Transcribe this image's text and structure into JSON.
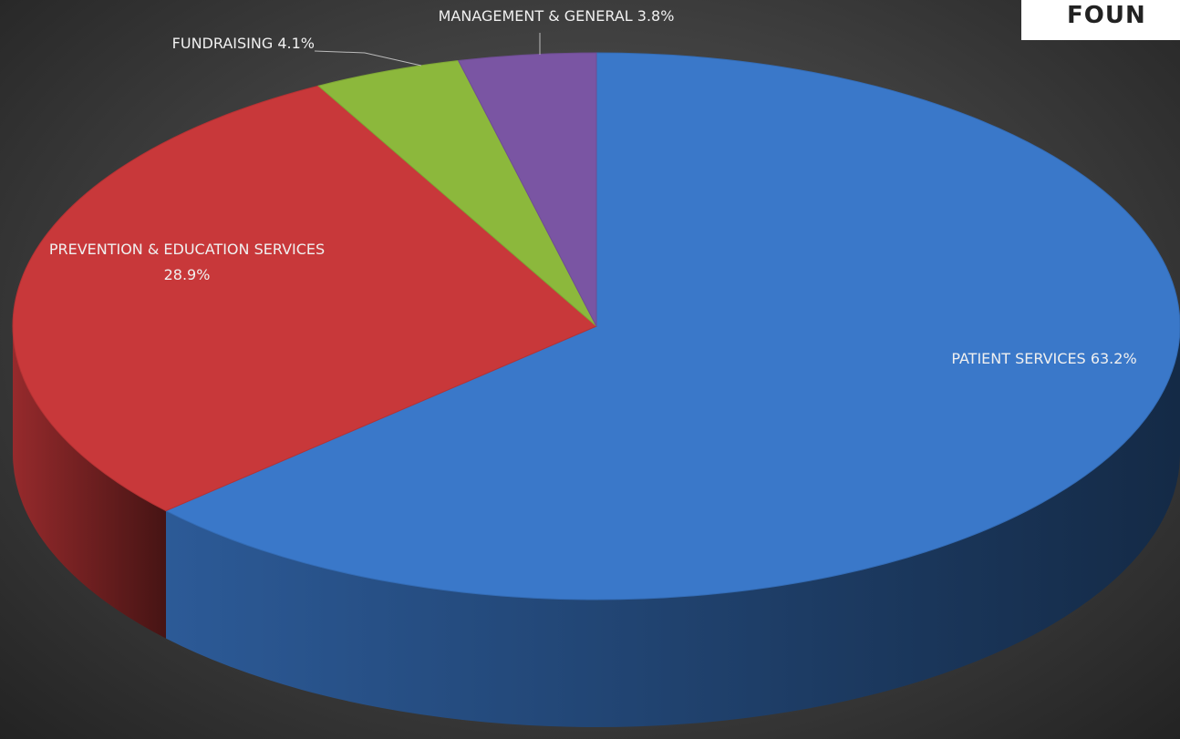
{
  "logo": "FOUN",
  "chart_data": {
    "type": "pie",
    "categories": [
      "PATIENT SERVICES",
      "PREVENTION & EDUCATION SERVICES",
      "FUNDRAISING",
      "MANAGEMENT & GENERAL"
    ],
    "values": [
      63.2,
      28.9,
      4.1,
      3.8
    ],
    "value_labels": [
      "63.2%",
      "28.9%",
      "4.1%",
      "3.8%"
    ],
    "colors": [
      "#3a78c9",
      "#c8383a",
      "#8cb83c",
      "#7a55a3"
    ]
  }
}
